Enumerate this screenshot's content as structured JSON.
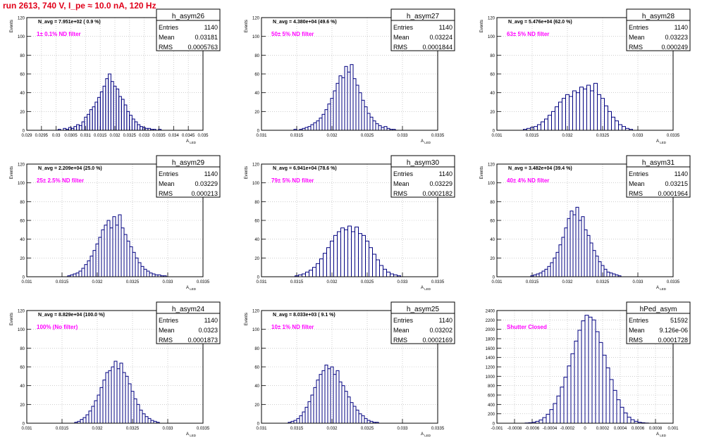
{
  "run_title": "run 2613,   740 V, I_pe ≈ 10.0 nA, 120 Hz",
  "colors": {
    "title": "#e0001a",
    "histogram": "#000080",
    "filter_label": "#ff00ff",
    "grid": "#b0b0b0"
  },
  "common": {
    "ylabel": "Events",
    "xlabel": "A",
    "xlabel_sub": "LED",
    "stats_labels": [
      "Entries",
      "Mean",
      "RMS"
    ]
  },
  "chart_data": [
    {
      "type": "bar",
      "name": "h_asym26",
      "xlabel": "A",
      "xlabel_sub": "LED",
      "ylabel": "Events",
      "navg": "N_avg = 7.951e+02 ( 0.9 %)",
      "filter": "1± 0.1% ND filter",
      "stats": {
        "entries": "1140",
        "mean": "0.03181",
        "rms": "0.0005763"
      },
      "xlim": [
        0.029,
        0.035
      ],
      "ylim": [
        0,
        120
      ],
      "xticks": [
        "0.029",
        "0.0295",
        "0.03",
        "0.0305",
        "0.031",
        "0.0315",
        "0.032",
        "0.0325",
        "0.033",
        "0.0335",
        "0.034",
        "0.0345",
        "0.035"
      ],
      "yticks": [
        "0",
        "20",
        "40",
        "60",
        "80",
        "100",
        "120"
      ],
      "x": [
        0.03011,
        0.0302,
        0.03029,
        0.03038,
        0.03047,
        0.03056,
        0.03065,
        0.03074,
        0.03083,
        0.03092,
        0.03101,
        0.0311,
        0.03119,
        0.03128,
        0.03137,
        0.03146,
        0.03155,
        0.03164,
        0.03173,
        0.03182,
        0.03191,
        0.032,
        0.03209,
        0.03218,
        0.03227,
        0.03236,
        0.03245,
        0.03254,
        0.03263,
        0.03272,
        0.03281,
        0.0329,
        0.03299,
        0.03308,
        0.03317,
        0.03326,
        0.03335,
        0.03344,
        0.03353
      ],
      "values": [
        1,
        0,
        2,
        1,
        3,
        2,
        4,
        6,
        5,
        9,
        14,
        17,
        22,
        25,
        30,
        35,
        41,
        47,
        55,
        60,
        52,
        47,
        44,
        36,
        33,
        27,
        20,
        16,
        12,
        9,
        6,
        4,
        3,
        2,
        2,
        1,
        1,
        0,
        1
      ]
    },
    {
      "type": "bar",
      "name": "h_asym27",
      "xlabel": "A",
      "xlabel_sub": "LED",
      "ylabel": "Events",
      "navg": "N_avg = 4.380e+04 (49.6 %)",
      "filter": "50± 5% ND filter",
      "stats": {
        "entries": "1140",
        "mean": "0.03224",
        "rms": "0.0001844"
      },
      "xlim": [
        0.031,
        0.0335
      ],
      "ylim": [
        0,
        120
      ],
      "xticks": [
        "0.031",
        "0.0315",
        "0.032",
        "0.0325",
        "0.033",
        "0.0335"
      ],
      "yticks": [
        "0",
        "20",
        "40",
        "60",
        "80",
        "100",
        "120"
      ],
      "x": [
        0.03148,
        0.03152,
        0.03156,
        0.0316,
        0.03164,
        0.03168,
        0.03172,
        0.03176,
        0.0318,
        0.03184,
        0.03188,
        0.03192,
        0.03196,
        0.032,
        0.03204,
        0.03208,
        0.03212,
        0.03216,
        0.0322,
        0.03224,
        0.03228,
        0.03232,
        0.03236,
        0.0324,
        0.03244,
        0.03248,
        0.03252,
        0.03256,
        0.0326,
        0.03264,
        0.03268,
        0.03272,
        0.03276,
        0.0328,
        0.03284,
        0.03288,
        0.03292
      ],
      "values": [
        1,
        0,
        1,
        2,
        3,
        4,
        6,
        8,
        10,
        13,
        17,
        22,
        28,
        34,
        42,
        50,
        58,
        56,
        68,
        62,
        70,
        55,
        48,
        40,
        32,
        25,
        18,
        14,
        10,
        7,
        5,
        3,
        4,
        2,
        1,
        1,
        0
      ]
    },
    {
      "type": "bar",
      "name": "h_asym28",
      "xlabel": "A",
      "xlabel_sub": "LED",
      "ylabel": "Events",
      "navg": "N_avg = 5.476e+04 (62.0 %)",
      "filter": "63± 5% ND filter",
      "stats": {
        "entries": "1140",
        "mean": "0.03223",
        "rms": "0.000249"
      },
      "xlim": [
        0.031,
        0.0335
      ],
      "ylim": [
        0,
        120
      ],
      "xticks": [
        "0.031",
        "0.0315",
        "0.032",
        "0.0325",
        "0.033",
        "0.0335"
      ],
      "yticks": [
        "0",
        "20",
        "40",
        "60",
        "80",
        "100",
        "120"
      ],
      "x": [
        0.0314,
        0.03145,
        0.0315,
        0.03155,
        0.0316,
        0.03165,
        0.0317,
        0.03175,
        0.0318,
        0.03185,
        0.0319,
        0.03195,
        0.032,
        0.03205,
        0.0321,
        0.03215,
        0.0322,
        0.03225,
        0.0323,
        0.03235,
        0.0324,
        0.03245,
        0.0325,
        0.03255,
        0.0326,
        0.03265,
        0.0327,
        0.03275,
        0.0328,
        0.03285,
        0.0329
      ],
      "values": [
        1,
        2,
        3,
        4,
        6,
        9,
        12,
        16,
        20,
        25,
        30,
        34,
        38,
        36,
        42,
        40,
        46,
        44,
        48,
        42,
        50,
        38,
        34,
        26,
        20,
        14,
        10,
        6,
        4,
        2,
        1
      ]
    },
    {
      "type": "bar",
      "name": "h_asym29",
      "xlabel": "A",
      "xlabel_sub": "LED",
      "ylabel": "Events",
      "navg": "N_avg = 2.209e+04 (25.0 %)",
      "filter": "25± 2.5% ND filter",
      "stats": {
        "entries": "1140",
        "mean": "0.03229",
        "rms": "0.000213"
      },
      "xlim": [
        0.031,
        0.0335
      ],
      "ylim": [
        0,
        120
      ],
      "xticks": [
        "0.031",
        "0.0315",
        "0.032",
        "0.0325",
        "0.033",
        "0.0335"
      ],
      "yticks": [
        "0",
        "20",
        "40",
        "60",
        "80",
        "100",
        "120"
      ],
      "x": [
        0.0316,
        0.03164,
        0.03168,
        0.03172,
        0.03176,
        0.0318,
        0.03184,
        0.03188,
        0.03192,
        0.03196,
        0.032,
        0.03204,
        0.03208,
        0.03212,
        0.03216,
        0.0322,
        0.03224,
        0.03228,
        0.03232,
        0.03236,
        0.0324,
        0.03244,
        0.03248,
        0.03252,
        0.03256,
        0.0326,
        0.03264,
        0.03268,
        0.03272,
        0.03276,
        0.0328,
        0.03284,
        0.03288,
        0.03292,
        0.03296,
        0.033
      ],
      "values": [
        1,
        2,
        3,
        4,
        6,
        9,
        13,
        17,
        22,
        28,
        35,
        42,
        50,
        55,
        60,
        52,
        64,
        55,
        66,
        52,
        45,
        38,
        32,
        26,
        20,
        15,
        11,
        8,
        6,
        4,
        3,
        2,
        2,
        1,
        1,
        0
      ]
    },
    {
      "type": "bar",
      "name": "h_asym30",
      "xlabel": "A",
      "xlabel_sub": "LED",
      "ylabel": "Events",
      "navg": "N_avg = 6.941e+04 (78.6 %)",
      "filter": "79± 5% ND filter",
      "stats": {
        "entries": "1140",
        "mean": "0.03229",
        "rms": "0.0002182"
      },
      "xlim": [
        0.031,
        0.0335
      ],
      "ylim": [
        0,
        120
      ],
      "xticks": [
        "0.031",
        "0.0315",
        "0.032",
        "0.0325",
        "0.033",
        "0.0335"
      ],
      "yticks": [
        "0",
        "20",
        "40",
        "60",
        "80",
        "100",
        "120"
      ],
      "x": [
        0.0315,
        0.03155,
        0.0316,
        0.03165,
        0.0317,
        0.03175,
        0.0318,
        0.03185,
        0.0319,
        0.03195,
        0.032,
        0.03205,
        0.0321,
        0.03215,
        0.0322,
        0.03225,
        0.0323,
        0.03235,
        0.0324,
        0.03245,
        0.0325,
        0.03255,
        0.0326,
        0.03265,
        0.0327,
        0.03275,
        0.0328,
        0.03285,
        0.0329,
        0.03295
      ],
      "values": [
        1,
        2,
        3,
        5,
        7,
        10,
        14,
        19,
        25,
        31,
        38,
        44,
        48,
        52,
        50,
        54,
        48,
        53,
        46,
        44,
        38,
        31,
        24,
        18,
        12,
        8,
        5,
        3,
        2,
        1
      ]
    },
    {
      "type": "bar",
      "name": "h_asym31",
      "xlabel": "A",
      "xlabel_sub": "LED",
      "ylabel": "Events",
      "navg": "N_avg = 3.482e+04 (39.4 %)",
      "filter": "40± 4% ND filter",
      "stats": {
        "entries": "1140",
        "mean": "0.03215",
        "rms": "0.0001964"
      },
      "xlim": [
        0.031,
        0.0335
      ],
      "ylim": [
        0,
        120
      ],
      "xticks": [
        "0.031",
        "0.0315",
        "0.032",
        "0.0325",
        "0.033",
        "0.0335"
      ],
      "yticks": [
        "0",
        "20",
        "40",
        "60",
        "80",
        "100",
        "120"
      ],
      "x": [
        0.0315,
        0.03154,
        0.03158,
        0.03162,
        0.03166,
        0.0317,
        0.03174,
        0.03178,
        0.03182,
        0.03186,
        0.0319,
        0.03194,
        0.03198,
        0.03202,
        0.03206,
        0.0321,
        0.03214,
        0.03218,
        0.03222,
        0.03226,
        0.0323,
        0.03234,
        0.03238,
        0.03242,
        0.03246,
        0.0325,
        0.03254,
        0.03258,
        0.03262,
        0.03266,
        0.0327,
        0.03274
      ],
      "values": [
        1,
        2,
        3,
        4,
        6,
        8,
        11,
        15,
        20,
        26,
        34,
        42,
        52,
        62,
        70,
        66,
        74,
        60,
        64,
        50,
        44,
        36,
        28,
        22,
        16,
        12,
        8,
        5,
        4,
        3,
        2,
        1
      ]
    },
    {
      "type": "bar",
      "name": "h_asym24",
      "xlabel": "A",
      "xlabel_sub": "LED",
      "ylabel": "Events",
      "navg": "N_avg = 8.829e+04 (100.0 %)",
      "filter": "100% (No filter)",
      "stats": {
        "entries": "1140",
        "mean": "0.0323",
        "rms": "0.0001873"
      },
      "xlim": [
        0.031,
        0.0335
      ],
      "ylim": [
        0,
        120
      ],
      "xticks": [
        "0.031",
        "0.0315",
        "0.032",
        "0.0325",
        "0.033",
        "0.0335"
      ],
      "yticks": [
        "0",
        "20",
        "40",
        "60",
        "80",
        "100",
        "120"
      ],
      "x": [
        0.0317,
        0.03174,
        0.03178,
        0.03182,
        0.03186,
        0.0319,
        0.03194,
        0.03198,
        0.03202,
        0.03206,
        0.0321,
        0.03214,
        0.03218,
        0.03222,
        0.03226,
        0.0323,
        0.03234,
        0.03238,
        0.03242,
        0.03246,
        0.0325,
        0.03254,
        0.03258,
        0.03262,
        0.03266,
        0.0327,
        0.03274,
        0.03278,
        0.03282,
        0.03286
      ],
      "values": [
        1,
        2,
        4,
        6,
        9,
        13,
        18,
        24,
        30,
        38,
        46,
        54,
        56,
        60,
        66,
        58,
        64,
        54,
        50,
        42,
        34,
        26,
        20,
        14,
        10,
        7,
        5,
        3,
        2,
        1
      ]
    },
    {
      "type": "bar",
      "name": "h_asym25",
      "xlabel": "A",
      "xlabel_sub": "LED",
      "ylabel": "Events",
      "navg": "N_avg = 8.033e+03 ( 9.1 %)",
      "filter": "10± 1% ND filter",
      "stats": {
        "entries": "1140",
        "mean": "0.03202",
        "rms": "0.0002169"
      },
      "xlim": [
        0.031,
        0.0335
      ],
      "ylim": [
        0,
        120
      ],
      "xticks": [
        "0.031",
        "0.0315",
        "0.032",
        "0.0325",
        "0.033",
        "0.0335"
      ],
      "yticks": [
        "0",
        "20",
        "40",
        "60",
        "80",
        "100",
        "120"
      ],
      "x": [
        0.0314,
        0.03144,
        0.03148,
        0.03152,
        0.03156,
        0.0316,
        0.03164,
        0.03168,
        0.03172,
        0.03176,
        0.0318,
        0.03184,
        0.03188,
        0.03192,
        0.03196,
        0.032,
        0.03204,
        0.03208,
        0.03212,
        0.03216,
        0.0322,
        0.03224,
        0.03228,
        0.03232,
        0.03236,
        0.0324,
        0.03244,
        0.03248,
        0.03252,
        0.03256,
        0.0326,
        0.03264
      ],
      "values": [
        1,
        2,
        3,
        5,
        8,
        12,
        17,
        23,
        30,
        38,
        46,
        52,
        56,
        62,
        58,
        60,
        52,
        56,
        44,
        40,
        34,
        28,
        22,
        18,
        14,
        10,
        8,
        5,
        3,
        2,
        1,
        1
      ]
    },
    {
      "type": "bar",
      "name": "hPed_asym",
      "xlabel": "A",
      "xlabel_sub": "LED",
      "ylabel": "",
      "navg": "",
      "filter": "Shutter Closed",
      "stats": {
        "entries": "51592",
        "mean": "9.126e-06",
        "rms": "0.0001728"
      },
      "xlim": [
        -0.001,
        0.001
      ],
      "ylim": [
        0,
        2400
      ],
      "xticks": [
        "-0.001",
        "-0.0008",
        "-0.0006",
        "-0.0004",
        "-0.0002",
        "0",
        "0.0002",
        "0.0004",
        "0.0006",
        "0.0008",
        "0.001"
      ],
      "yticks": [
        "0",
        "200",
        "400",
        "600",
        "800",
        "1000",
        "1200",
        "1400",
        "1600",
        "1800",
        "2000",
        "2200",
        "2400"
      ],
      "x": [
        -0.00066,
        -0.00062,
        -0.00058,
        -0.00054,
        -0.0005,
        -0.00046,
        -0.00042,
        -0.00038,
        -0.00034,
        -0.0003,
        -0.00026,
        -0.00022,
        -0.00018,
        -0.00014,
        -0.0001,
        -6e-05,
        -2e-05,
        2e-05,
        6e-05,
        0.0001,
        0.00014,
        0.00018,
        0.00022,
        0.00026,
        0.0003,
        0.00034,
        0.00038,
        0.00042,
        0.00046,
        0.0005,
        0.00054,
        0.00058,
        0.00062,
        0.00066,
        0.0007
      ],
      "values": [
        5,
        10,
        20,
        40,
        70,
        120,
        190,
        290,
        420,
        580,
        770,
        980,
        1220,
        1480,
        1750,
        1980,
        2180,
        2300,
        2260,
        2200,
        1950,
        1720,
        1450,
        1180,
        930,
        700,
        500,
        340,
        220,
        130,
        75,
        40,
        20,
        10,
        4
      ]
    }
  ]
}
